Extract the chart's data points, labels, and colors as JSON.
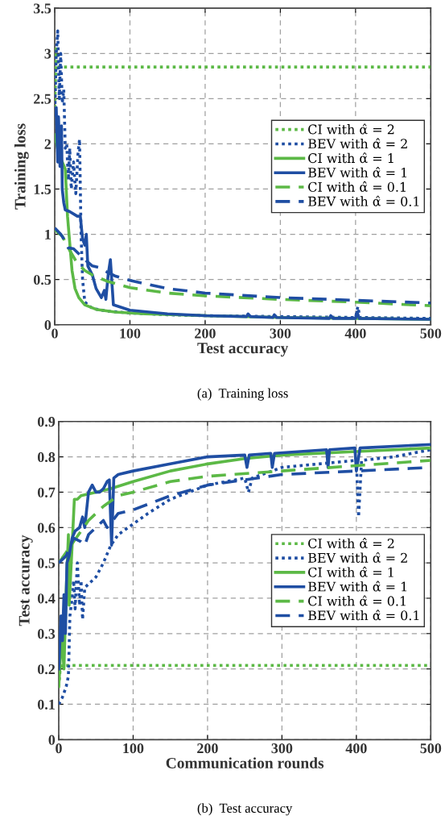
{
  "chart_data": [
    {
      "type": "line",
      "xlabel": "Test accuracy",
      "ylabel": "Training loss",
      "xlim": [
        0,
        500
      ],
      "ylim": [
        0,
        3.5
      ],
      "xticks": [
        0,
        100,
        200,
        300,
        400,
        500
      ],
      "yticks": [
        0,
        0.5,
        1,
        1.5,
        2,
        2.5,
        3,
        3.5
      ],
      "grid": true,
      "legend": "center right",
      "annotations": [
        "(a)  Training loss"
      ],
      "series": [
        {
          "name": "CI with α̂ = 2",
          "color": "#5cb946",
          "line_style": "dotted",
          "x": [
            0,
            2,
            4,
            500
          ],
          "values": [
            2.4,
            3.05,
            2.85,
            2.85
          ]
        },
        {
          "name": "BEV with α̂ = 2",
          "color": "#1f4ea3",
          "line_style": "dotted",
          "x": [
            0,
            2,
            4,
            6,
            8,
            10,
            12,
            14,
            16,
            18,
            20,
            22,
            25,
            28,
            31,
            33,
            35,
            37,
            40,
            50,
            70,
            100,
            150,
            200,
            300,
            400,
            403,
            406,
            500
          ],
          "values": [
            2.3,
            3.0,
            3.25,
            2.5,
            3.0,
            2.45,
            2.6,
            1.95,
            2.0,
            1.6,
            1.95,
            1.5,
            1.8,
            1.45,
            1.9,
            2.05,
            1.0,
            0.5,
            0.25,
            0.18,
            0.15,
            0.13,
            0.11,
            0.1,
            0.09,
            0.08,
            0.2,
            0.08,
            0.07
          ]
        },
        {
          "name": "CI with α̂ = 1",
          "color": "#5cb946",
          "line_style": "solid",
          "x": [
            0,
            5,
            10,
            14,
            17,
            20,
            23,
            27,
            32,
            40,
            55,
            80,
            120,
            200,
            300,
            400,
            500
          ],
          "values": [
            2.1,
            1.9,
            1.8,
            1.72,
            1.2,
            0.9,
            0.6,
            0.4,
            0.3,
            0.22,
            0.17,
            0.14,
            0.12,
            0.1,
            0.08,
            0.07,
            0.06
          ]
        },
        {
          "name": "BEV with α̂ = 1",
          "color": "#1f4ea3",
          "line_style": "solid",
          "x": [
            0,
            2,
            4,
            5,
            7,
            9,
            10,
            12,
            14,
            20,
            30,
            34,
            37,
            40,
            42,
            44,
            50,
            55,
            62,
            66,
            68,
            71,
            74,
            78,
            100,
            150,
            200,
            255,
            257,
            260,
            290,
            292,
            295,
            365,
            367,
            370,
            400,
            402,
            405,
            500
          ],
          "values": [
            2.35,
            2.4,
            1.8,
            2.3,
            1.75,
            2.2,
            1.5,
            1.35,
            1.27,
            1.25,
            1.2,
            1.2,
            0.95,
            0.88,
            1.0,
            0.65,
            0.55,
            0.4,
            0.3,
            0.38,
            0.28,
            0.55,
            0.72,
            0.22,
            0.16,
            0.12,
            0.1,
            0.09,
            0.12,
            0.09,
            0.08,
            0.11,
            0.08,
            0.07,
            0.1,
            0.07,
            0.07,
            0.14,
            0.07,
            0.06
          ]
        },
        {
          "name": "CI with α̂ = 0.1",
          "color": "#5cb946",
          "line_style": "dashed",
          "x": [
            0,
            10,
            20,
            30,
            40,
            50,
            70,
            100,
            150,
            200,
            300,
            400,
            500
          ],
          "values": [
            1.05,
            0.98,
            0.82,
            0.68,
            0.6,
            0.55,
            0.48,
            0.41,
            0.35,
            0.32,
            0.28,
            0.25,
            0.21
          ]
        },
        {
          "name": "BEV with α̂ = 0.1",
          "color": "#1f4ea3",
          "line_style": "dashed",
          "x": [
            0,
            8,
            12,
            18,
            25,
            30,
            40,
            50,
            60,
            70,
            80,
            100,
            150,
            200,
            300,
            400,
            500
          ],
          "values": [
            1.07,
            1.0,
            0.95,
            0.85,
            0.84,
            0.8,
            0.72,
            0.65,
            0.63,
            0.58,
            0.54,
            0.49,
            0.4,
            0.35,
            0.3,
            0.27,
            0.24
          ]
        }
      ]
    },
    {
      "type": "line",
      "xlabel": "Communication rounds",
      "ylabel": "Test accuracy",
      "xlim": [
        0,
        500
      ],
      "ylim": [
        0,
        0.9
      ],
      "xticks": [
        0,
        100,
        200,
        300,
        400,
        500
      ],
      "yticks": [
        0,
        0.1,
        0.2,
        0.3,
        0.4,
        0.5,
        0.6,
        0.7,
        0.8,
        0.9
      ],
      "grid": true,
      "legend": "center right",
      "annotations": [
        "(b)  Test accuracy"
      ],
      "series": [
        {
          "name": "CI with α̂ = 2",
          "color": "#5cb946",
          "line_style": "dotted",
          "x": [
            0,
            2,
            5,
            500
          ],
          "values": [
            0.15,
            0.2,
            0.21,
            0.21
          ]
        },
        {
          "name": "BEV with α̂ = 2",
          "color": "#1f4ea3",
          "line_style": "dotted",
          "x": [
            0,
            5,
            10,
            13,
            15,
            18,
            20,
            22,
            25,
            28,
            30,
            32,
            35,
            40,
            50,
            60,
            70,
            80,
            100,
            120,
            150,
            200,
            250,
            255,
            260,
            300,
            350,
            400,
            403,
            407,
            450,
            500
          ],
          "values": [
            0.1,
            0.12,
            0.15,
            0.18,
            0.35,
            0.4,
            0.45,
            0.37,
            0.5,
            0.38,
            0.45,
            0.34,
            0.43,
            0.44,
            0.46,
            0.5,
            0.55,
            0.58,
            0.61,
            0.64,
            0.68,
            0.72,
            0.74,
            0.7,
            0.74,
            0.77,
            0.78,
            0.79,
            0.63,
            0.79,
            0.8,
            0.82
          ]
        },
        {
          "name": "CI with α̂ = 1",
          "color": "#5cb946",
          "line_style": "solid",
          "x": [
            0,
            4,
            7,
            10,
            13,
            14,
            18,
            21,
            25,
            30,
            50,
            70,
            100,
            150,
            200,
            250,
            300,
            400,
            500
          ],
          "values": [
            0.15,
            0.3,
            0.2,
            0.42,
            0.58,
            0.38,
            0.55,
            0.68,
            0.68,
            0.69,
            0.7,
            0.71,
            0.73,
            0.76,
            0.78,
            0.795,
            0.805,
            0.815,
            0.825
          ]
        },
        {
          "name": "BEV with α̂ = 1",
          "color": "#1f4ea3",
          "line_style": "solid",
          "x": [
            0,
            3,
            5,
            7,
            9,
            11,
            14,
            18,
            22,
            28,
            32,
            35,
            40,
            45,
            50,
            55,
            60,
            65,
            68,
            71,
            74,
            80,
            100,
            150,
            200,
            250,
            253,
            256,
            285,
            287,
            290,
            360,
            362,
            364,
            398,
            400,
            405,
            500
          ],
          "values": [
            0.2,
            0.35,
            0.28,
            0.41,
            0.3,
            0.5,
            0.52,
            0.57,
            0.59,
            0.6,
            0.63,
            0.6,
            0.7,
            0.72,
            0.7,
            0.7,
            0.71,
            0.73,
            0.735,
            0.55,
            0.74,
            0.75,
            0.76,
            0.78,
            0.8,
            0.805,
            0.77,
            0.805,
            0.81,
            0.77,
            0.81,
            0.82,
            0.77,
            0.82,
            0.825,
            0.76,
            0.825,
            0.835
          ]
        },
        {
          "name": "CI with α̂ = 0.1",
          "color": "#5cb946",
          "line_style": "dashed",
          "x": [
            0,
            10,
            20,
            30,
            40,
            60,
            80,
            100,
            150,
            200,
            300,
            400,
            500
          ],
          "values": [
            0.5,
            0.53,
            0.56,
            0.59,
            0.62,
            0.66,
            0.69,
            0.7,
            0.73,
            0.745,
            0.76,
            0.775,
            0.79
          ]
        },
        {
          "name": "BEV with α̂ = 0.1",
          "color": "#1f4ea3",
          "line_style": "dashed",
          "x": [
            0,
            10,
            20,
            30,
            35,
            40,
            50,
            60,
            65,
            80,
            100,
            150,
            200,
            300,
            400,
            500
          ],
          "values": [
            0.5,
            0.52,
            0.57,
            0.56,
            0.55,
            0.58,
            0.6,
            0.62,
            0.6,
            0.64,
            0.65,
            0.69,
            0.72,
            0.75,
            0.76,
            0.77
          ]
        }
      ]
    }
  ]
}
